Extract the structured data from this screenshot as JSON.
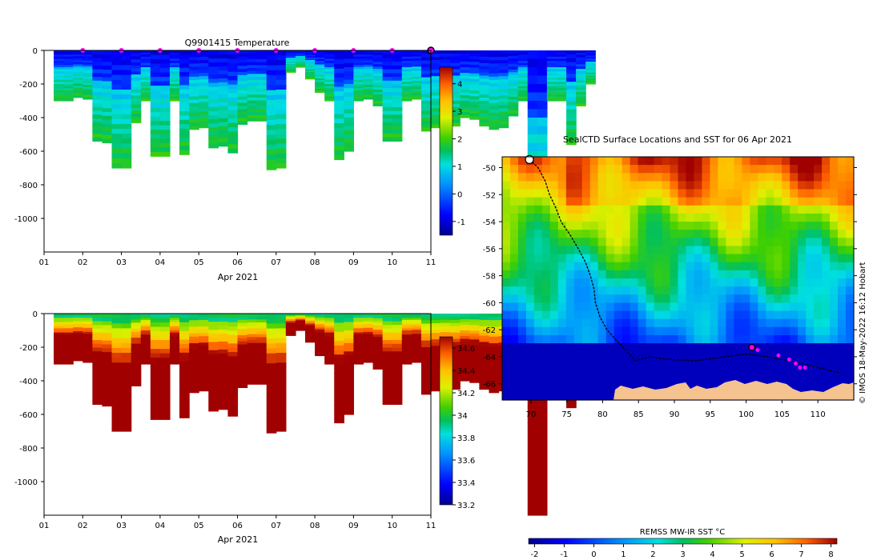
{
  "chart_data": [
    {
      "id": "temperature",
      "type": "heatmap",
      "title": "Q9901415  Temperature",
      "xlabel": "Apr 2021",
      "x_ticks": [
        "01",
        "02",
        "03",
        "04",
        "05",
        "06",
        "07",
        "08",
        "09",
        "10",
        "11"
      ],
      "xlim": [
        1,
        11
      ],
      "ylim": [
        -1200,
        0
      ],
      "y_ticks": [
        0,
        -200,
        -400,
        -600,
        -800,
        -1000
      ],
      "colorbar_ticks": [
        "-1",
        "0",
        "1",
        "2",
        "3",
        "4"
      ],
      "colorbar_range": [
        -1.5,
        4.6
      ],
      "surface_marker_days": [
        2,
        3,
        4,
        5,
        6,
        7,
        8,
        9,
        10
      ],
      "current_position_day": 11,
      "profile_start_day": 1.25,
      "profiles_per_day": 4,
      "profile_depths": [
        300,
        300,
        280,
        290,
        540,
        550,
        700,
        700,
        430,
        300,
        630,
        630,
        300,
        620,
        470,
        460,
        580,
        570,
        610,
        440,
        420,
        420,
        710,
        700,
        130,
        100,
        170,
        250,
        300,
        650,
        600,
        300,
        290,
        330,
        540,
        540,
        300,
        290,
        480,
        460,
        440,
        450,
        400,
        410,
        450,
        470,
        460,
        390,
        300,
        1200,
        1200,
        300,
        300,
        560,
        330,
        200
      ]
    },
    {
      "id": "salinity",
      "type": "heatmap",
      "title": "",
      "xlabel": "Apr 2021",
      "x_ticks": [
        "01",
        "02",
        "03",
        "04",
        "05",
        "06",
        "07",
        "08",
        "09",
        "10",
        "11"
      ],
      "xlim": [
        1,
        11
      ],
      "ylim": [
        -1200,
        0
      ],
      "y_ticks": [
        0,
        -200,
        -400,
        -600,
        -800,
        -1000
      ],
      "colorbar_ticks": [
        "33.2",
        "33.4",
        "33.6",
        "33.8",
        "34",
        "34.2",
        "34.4",
        "34.6"
      ],
      "colorbar_range": [
        33.2,
        34.7
      ]
    },
    {
      "id": "sst_map",
      "type": "heatmap",
      "title": "SealCTD Surface Locations and SST for 06 Apr 2021",
      "x_ticks": [
        "70",
        "75",
        "80",
        "85",
        "90",
        "95",
        "100",
        "105",
        "110"
      ],
      "y_ticks": [
        "-50",
        "-52",
        "-54",
        "-56",
        "-58",
        "-60",
        "-62",
        "-64",
        "-66"
      ],
      "lon_range": [
        66,
        115
      ],
      "lat_range": [
        -67.2,
        -49.2
      ],
      "colorbar_label": "REMSS MW-IR SST °C",
      "colorbar_ticks": [
        "-2",
        "-1",
        "0",
        "1",
        "2",
        "3",
        "4",
        "5",
        "6",
        "7",
        "8"
      ],
      "colorbar_range": [
        -2.2,
        8.2
      ],
      "track": [
        [
          69.8,
          -49.4
        ],
        [
          71,
          -50
        ],
        [
          72,
          -51
        ],
        [
          72.6,
          -52
        ],
        [
          73.5,
          -53
        ],
        [
          74.2,
          -54
        ],
        [
          75.5,
          -55
        ],
        [
          76.6,
          -56
        ],
        [
          77.6,
          -57
        ],
        [
          78.3,
          -58
        ],
        [
          78.8,
          -59
        ],
        [
          79,
          -60
        ],
        [
          79.6,
          -61
        ],
        [
          80.6,
          -62
        ],
        [
          82.3,
          -63
        ],
        [
          84.6,
          -64.3
        ],
        [
          86.5,
          -64
        ],
        [
          89,
          -64.2
        ],
        [
          93,
          -64.3
        ],
        [
          97,
          -64
        ],
        [
          100,
          -63.8
        ],
        [
          103,
          -64
        ],
        [
          107,
          -64.4
        ],
        [
          110,
          -64.8
        ],
        [
          113,
          -65.2
        ]
      ],
      "daily_positions": [
        [
          101.6,
          -63.5
        ],
        [
          104.5,
          -63.9
        ],
        [
          106,
          -64.2
        ],
        [
          106.9,
          -64.5
        ],
        [
          107.5,
          -64.8
        ],
        [
          108.2,
          -64.8
        ]
      ],
      "current_position": [
        100.8,
        -63.3
      ]
    }
  ],
  "watermark": "© IMOS 18-May-2022 16:12 Hobart"
}
